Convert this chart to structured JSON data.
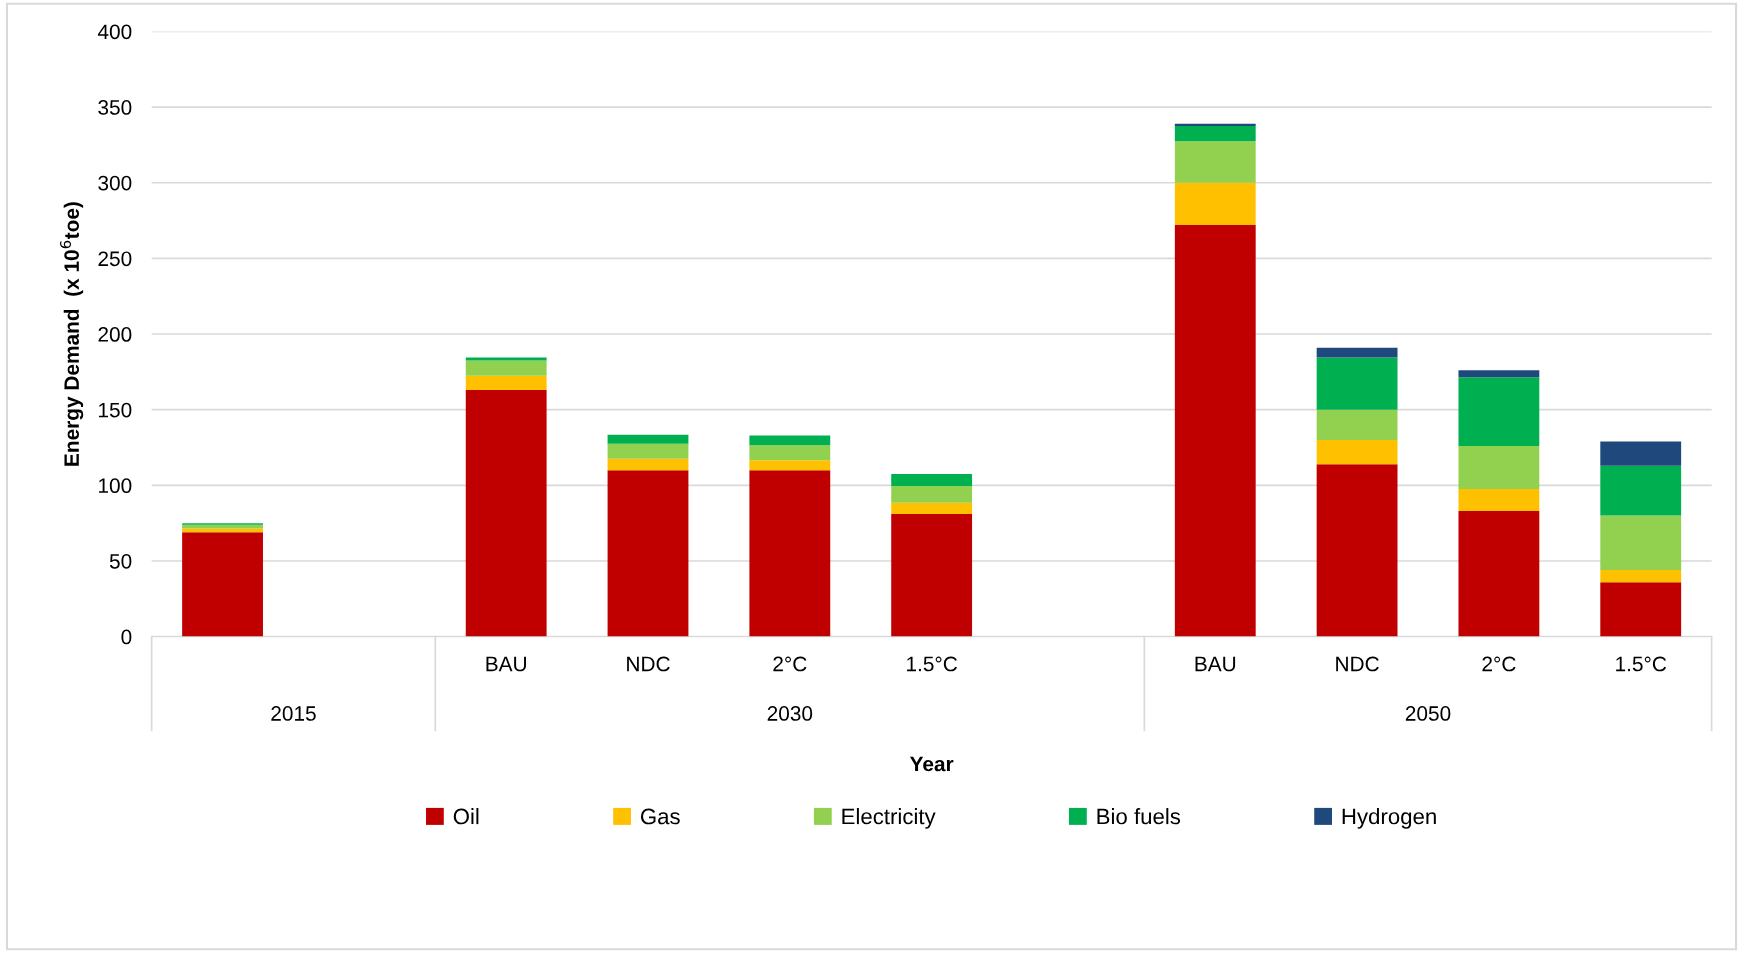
{
  "chart_data": {
    "type": "bar",
    "stacked": true,
    "ylabel": "Energy Demand  (x 10$^{6}$toe)",
    "xlabel": "Year",
    "categories": [
      null,
      null,
      "BAU",
      "NDC",
      "2°C",
      "1.5°C",
      null,
      "BAU",
      "NDC",
      "2°C",
      "1.5°C"
    ],
    "annotations": [
      "2015",
      "2030",
      "2050"
    ],
    "series": [
      {
        "name": "Oil",
        "color": "#c00000",
        "values": [
          69,
          null,
          163,
          110,
          110,
          81,
          null,
          272,
          114,
          83,
          36
        ]
      },
      {
        "name": "Gas",
        "color": "#ffc000",
        "values": [
          2.5,
          null,
          9.5,
          7.5,
          6.5,
          7.5,
          null,
          28,
          16,
          14.5,
          8
        ]
      },
      {
        "name": "Electricity",
        "color": "#92d050",
        "values": [
          2.5,
          null,
          10,
          10,
          10,
          11,
          null,
          27.5,
          20,
          28.5,
          36
        ]
      },
      {
        "name": "Bio fuels",
        "color": "#00b050",
        "values": [
          1,
          null,
          2,
          6,
          6.5,
          8,
          null,
          10,
          34.5,
          45.5,
          33
        ]
      },
      {
        "name": "Hydrogen",
        "color": "#1f497d",
        "values": [
          null,
          null,
          null,
          null,
          null,
          null,
          null,
          1.5,
          6.5,
          4.5,
          16
        ]
      }
    ],
    "ylim": [
      0,
      400
    ],
    "yticks": [
      0,
      50,
      100,
      150,
      200,
      250,
      300,
      350,
      400
    ],
    "grid": "y",
    "legend": "bottom"
  }
}
